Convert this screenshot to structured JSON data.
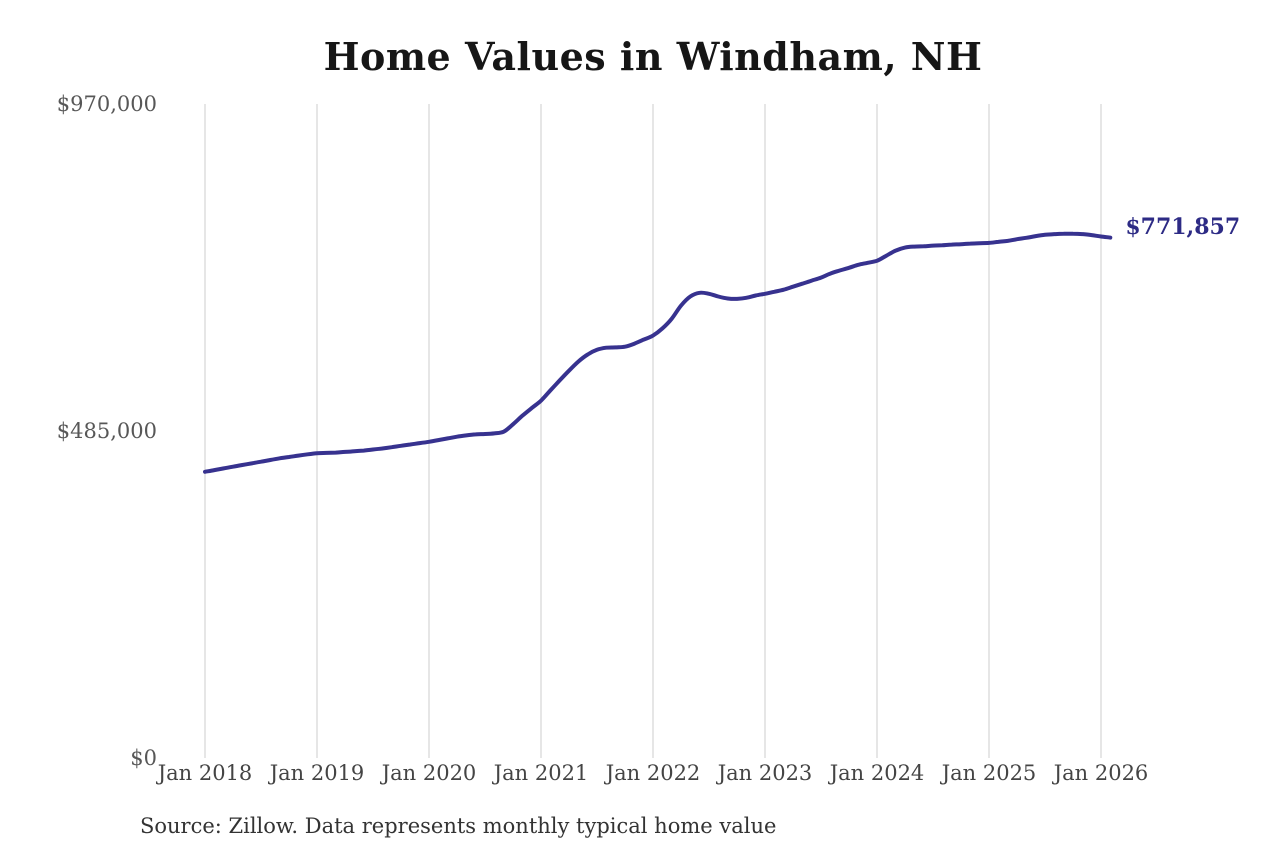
{
  "chart_data": {
    "type": "line",
    "title": "Home Values in Windham, NH",
    "series_name": "Monthly typical home value",
    "unit": "USD",
    "source_note": "Source: Zillow. Data represents monthly typical home value",
    "last_value": 771857,
    "last_value_label": "$771,857",
    "line_color": "#37328f",
    "end_label_color": "#2d2b85",
    "grid": "vertical-only",
    "gridline_color": "#cccccc",
    "ylim": [
      0,
      970000
    ],
    "y_ticks": [
      {
        "label": "$0",
        "value": 0
      },
      {
        "label": "$485,000",
        "value": 485000
      },
      {
        "label": "$970,000",
        "value": 970000
      }
    ],
    "x_ticks": [
      "Jan 2018",
      "Jan 2019",
      "Jan 2020",
      "Jan 2021",
      "Jan 2022",
      "Jan 2023",
      "Jan 2024",
      "Jan 2025",
      "Jan 2026"
    ],
    "x": [
      "Jan 2018",
      "Feb 2018",
      "Mar 2018",
      "Apr 2018",
      "May 2018",
      "Jun 2018",
      "Jul 2018",
      "Aug 2018",
      "Sep 2018",
      "Oct 2018",
      "Nov 2018",
      "Dec 2018",
      "Jan 2019",
      "Feb 2019",
      "Mar 2019",
      "Apr 2019",
      "May 2019",
      "Jun 2019",
      "Jul 2019",
      "Aug 2019",
      "Sep 2019",
      "Oct 2019",
      "Nov 2019",
      "Dec 2019",
      "Jan 2020",
      "Feb 2020",
      "Mar 2020",
      "Apr 2020",
      "May 2020",
      "Jun 2020",
      "Jul 2020",
      "Aug 2020",
      "Sep 2020",
      "Oct 2020",
      "Nov 2020",
      "Dec 2020",
      "Jan 2021",
      "Feb 2021",
      "Mar 2021",
      "Apr 2021",
      "May 2021",
      "Jun 2021",
      "Jul 2021",
      "Aug 2021",
      "Sep 2021",
      "Oct 2021",
      "Nov 2021",
      "Dec 2021",
      "Jan 2022",
      "Feb 2022",
      "Mar 2022",
      "Apr 2022",
      "May 2022",
      "Jun 2022",
      "Jul 2022",
      "Aug 2022",
      "Sep 2022",
      "Oct 2022",
      "Nov 2022",
      "Dec 2022",
      "Jan 2023",
      "Feb 2023",
      "Mar 2023",
      "Apr 2023",
      "May 2023",
      "Jun 2023",
      "Jul 2023",
      "Aug 2023",
      "Sep 2023",
      "Oct 2023",
      "Nov 2023",
      "Dec 2023",
      "Jan 2024",
      "Feb 2024",
      "Mar 2024",
      "Apr 2024",
      "May 2024",
      "Jun 2024",
      "Jul 2024",
      "Aug 2024",
      "Sep 2024",
      "Oct 2024",
      "Nov 2024",
      "Dec 2024",
      "Jan 2025",
      "Feb 2025",
      "Mar 2025",
      "Apr 2025",
      "May 2025",
      "Jun 2025",
      "Jul 2025",
      "Aug 2025",
      "Sep 2025",
      "Oct 2025",
      "Nov 2025",
      "Dec 2025",
      "Jan 2026",
      "Feb 2026"
    ],
    "values": [
      424500,
      427000,
      429500,
      432000,
      434500,
      437000,
      439500,
      442000,
      444500,
      446500,
      448500,
      450500,
      452000,
      452500,
      453000,
      454000,
      455000,
      456000,
      457500,
      459000,
      461000,
      463000,
      465000,
      467000,
      469000,
      471500,
      474000,
      476500,
      478500,
      480000,
      480500,
      481500,
      484000,
      495000,
      507500,
      519000,
      530000,
      545000,
      560000,
      574500,
      588000,
      598500,
      605500,
      608500,
      609000,
      610000,
      614500,
      620500,
      626500,
      637000,
      651500,
      671000,
      684500,
      690000,
      688500,
      684500,
      681500,
      681000,
      682500,
      686000,
      688500,
      691500,
      694500,
      699000,
      703500,
      708000,
      712500,
      718500,
      723000,
      727000,
      731500,
      734500,
      737500,
      745000,
      752500,
      757000,
      758500,
      759000,
      760000,
      760500,
      761500,
      762000,
      763000,
      763500,
      764000,
      765500,
      767000,
      769500,
      771500,
      774000,
      776000,
      777000,
      777500,
      777500,
      777000,
      775500,
      773500,
      771857
    ]
  }
}
